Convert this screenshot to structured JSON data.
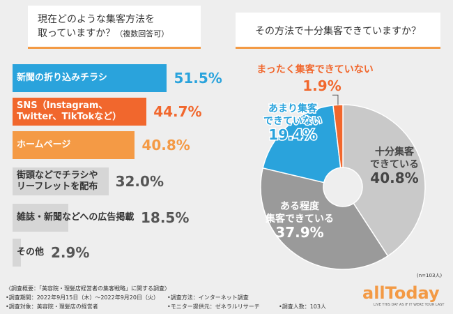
{
  "chart_data": [
    {
      "type": "bar",
      "orientation": "horizontal",
      "title": "現在どのような集客方法を\n取っていますか？",
      "subtitle": "（複数回答可）",
      "categories": [
        "新聞の折り込みチラシ",
        "SNS（Instagram、\nTwitter、TikTokなど）",
        "ホームページ",
        "街頭などでチラシや\nリーフレットを配布",
        "雑誌・新聞などへの広告掲載",
        "その他"
      ],
      "values": [
        51.5,
        44.7,
        40.8,
        32.0,
        18.5,
        2.9
      ],
      "value_labels": [
        "51.5%",
        "44.7%",
        "40.8%",
        "32.0%",
        "18.5%",
        "2.9%"
      ],
      "colors": [
        "#2aa3dc",
        "#f1672d",
        "#f49a45",
        "#d6d6d6",
        "#d6d6d6",
        "#d6d6d6"
      ],
      "label_colors": [
        "#ffffff",
        "#ffffff",
        "#ffffff",
        "#333333",
        "#333333",
        "#333333"
      ],
      "value_colors": [
        "#2aa3dc",
        "#f1672d",
        "#f49a45",
        "#555555",
        "#555555",
        "#555555"
      ]
    },
    {
      "type": "pie",
      "title": "その方法で十分集客できていますか？",
      "note": "(n=103人)",
      "categories": [
        "十分集客\nできている",
        "ある程度\n集客できている",
        "あまり集客\nできていない",
        "まったく集客できていない"
      ],
      "values": [
        40.8,
        37.9,
        19.4,
        1.9
      ],
      "value_labels": [
        "40.8%",
        "37.9%",
        "19.4%",
        "1.9%"
      ],
      "colors": [
        "#c9c9c9",
        "#9a9a9a",
        "#2aa3dc",
        "#f1672d"
      ],
      "label_colors": [
        "#444444",
        "#ffffff",
        "#2aa3dc",
        "#f1672d"
      ]
    }
  ],
  "footer": {
    "heading": "〈調査概要：「美容院・理髪店経営者の集客戦略」に関する調査〉",
    "period": "•調査期間：2022年9月15日（木）〜2022年9月20日（火）",
    "target": "•調査対象：美容院・理髪店の経営者",
    "method": "•調査方法：インターネット調査",
    "provider": "•モニター提供元：ゼネラルリサーチ",
    "count": "•調査人数：103人",
    "logo": "allToday",
    "tagline": "LIVE THIS DAY AS IF IT WERE YOUR LAST"
  }
}
